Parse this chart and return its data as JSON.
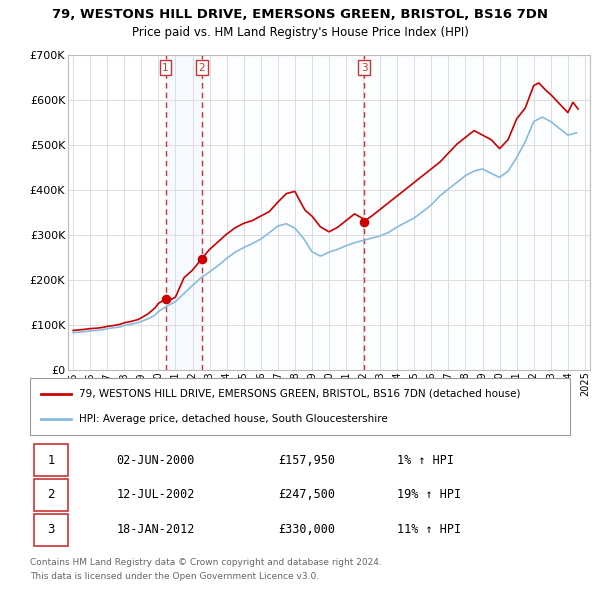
{
  "title": "79, WESTONS HILL DRIVE, EMERSONS GREEN, BRISTOL, BS16 7DN",
  "subtitle": "Price paid vs. HM Land Registry's House Price Index (HPI)",
  "legend_line1": "79, WESTONS HILL DRIVE, EMERSONS GREEN, BRISTOL, BS16 7DN (detached house)",
  "legend_line2": "HPI: Average price, detached house, South Gloucestershire",
  "footer1": "Contains HM Land Registry data © Crown copyright and database right 2024.",
  "footer2": "This data is licensed under the Open Government Licence v3.0.",
  "red_color": "#cc0000",
  "blue_color": "#88bbdd",
  "vline_color": "#cc3333",
  "background_color": "#ffffff",
  "grid_color": "#dddddd",
  "transactions": [
    {
      "num": 1,
      "date_val": 2000.42,
      "price": 157950,
      "label": "02-JUN-2000",
      "price_str": "£157,950",
      "pct": "1% ↑ HPI"
    },
    {
      "num": 2,
      "date_val": 2002.54,
      "price": 247500,
      "label": "12-JUL-2002",
      "price_str": "£247,500",
      "pct": "19% ↑ HPI"
    },
    {
      "num": 3,
      "date_val": 2012.05,
      "price": 330000,
      "label": "18-JAN-2012",
      "price_str": "£330,000",
      "pct": "11% ↑ HPI"
    }
  ],
  "ylim": [
    0,
    700000
  ],
  "yticks": [
    0,
    100000,
    200000,
    300000,
    400000,
    500000,
    600000,
    700000
  ],
  "ytick_labels": [
    "£0",
    "£100K",
    "£200K",
    "£300K",
    "£400K",
    "£500K",
    "£600K",
    "£700K"
  ],
  "xlim": [
    1994.7,
    2025.3
  ],
  "xticks": [
    1995,
    1996,
    1997,
    1998,
    1999,
    2000,
    2001,
    2002,
    2003,
    2004,
    2005,
    2006,
    2007,
    2008,
    2009,
    2010,
    2011,
    2012,
    2013,
    2014,
    2015,
    2016,
    2017,
    2018,
    2019,
    2020,
    2021,
    2022,
    2023,
    2024,
    2025
  ],
  "red_x": [
    1995.0,
    1995.3,
    1995.6,
    1996.0,
    1996.4,
    1996.8,
    1997.0,
    1997.4,
    1997.8,
    1998.0,
    1998.4,
    1998.8,
    1999.0,
    1999.4,
    1999.8,
    2000.0,
    2000.42,
    2000.6,
    2001.0,
    2001.5,
    2002.0,
    2002.54,
    2003.0,
    2003.5,
    2004.0,
    2004.5,
    2005.0,
    2005.5,
    2006.0,
    2006.5,
    2007.0,
    2007.5,
    2008.0,
    2008.3,
    2008.6,
    2009.0,
    2009.5,
    2010.0,
    2010.5,
    2011.0,
    2011.5,
    2012.0,
    2012.05,
    2012.5,
    2013.0,
    2013.5,
    2014.0,
    2014.5,
    2015.0,
    2015.5,
    2016.0,
    2016.5,
    2017.0,
    2017.5,
    2018.0,
    2018.5,
    2019.0,
    2019.5,
    2020.0,
    2020.5,
    2021.0,
    2021.5,
    2022.0,
    2022.3,
    2022.7,
    2023.0,
    2023.5,
    2024.0,
    2024.3,
    2024.6
  ],
  "red_y": [
    88000,
    89000,
    90000,
    92000,
    93000,
    95000,
    97000,
    99000,
    102000,
    105000,
    108000,
    112000,
    116000,
    125000,
    138000,
    148000,
    157950,
    154000,
    162000,
    205000,
    222000,
    247500,
    268000,
    285000,
    302000,
    316000,
    326000,
    332000,
    342000,
    352000,
    373000,
    392000,
    397000,
    375000,
    355000,
    342000,
    318000,
    307000,
    317000,
    332000,
    347000,
    336000,
    330000,
    342000,
    357000,
    372000,
    387000,
    402000,
    417000,
    432000,
    447000,
    462000,
    482000,
    502000,
    517000,
    532000,
    522000,
    512000,
    492000,
    512000,
    558000,
    582000,
    632000,
    638000,
    622000,
    612000,
    592000,
    572000,
    595000,
    580000
  ],
  "blue_x": [
    1995.0,
    1995.3,
    1995.6,
    1996.0,
    1996.4,
    1996.8,
    1997.0,
    1997.4,
    1997.8,
    1998.0,
    1998.4,
    1998.8,
    1999.0,
    1999.4,
    1999.8,
    2000.0,
    2000.5,
    2001.0,
    2001.5,
    2002.0,
    2002.5,
    2003.0,
    2003.5,
    2004.0,
    2004.5,
    2005.0,
    2005.5,
    2006.0,
    2006.5,
    2007.0,
    2007.5,
    2008.0,
    2008.5,
    2009.0,
    2009.5,
    2010.0,
    2010.5,
    2011.0,
    2011.5,
    2012.0,
    2012.5,
    2013.0,
    2013.5,
    2014.0,
    2014.5,
    2015.0,
    2015.5,
    2016.0,
    2016.5,
    2017.0,
    2017.5,
    2018.0,
    2018.5,
    2019.0,
    2019.5,
    2020.0,
    2020.5,
    2021.0,
    2021.5,
    2022.0,
    2022.5,
    2023.0,
    2023.5,
    2024.0,
    2024.5
  ],
  "blue_y": [
    83000,
    84000,
    85000,
    87000,
    88000,
    90000,
    92000,
    94000,
    96000,
    99000,
    102000,
    105000,
    108000,
    114000,
    122000,
    130000,
    142000,
    152000,
    170000,
    188000,
    205000,
    218000,
    232000,
    248000,
    262000,
    272000,
    281000,
    291000,
    305000,
    320000,
    325000,
    315000,
    293000,
    263000,
    253000,
    262000,
    268000,
    276000,
    283000,
    288000,
    293000,
    298000,
    306000,
    318000,
    328000,
    338000,
    352000,
    367000,
    387000,
    402000,
    417000,
    432000,
    442000,
    447000,
    437000,
    428000,
    442000,
    472000,
    507000,
    552000,
    562000,
    552000,
    537000,
    522000,
    527000
  ]
}
